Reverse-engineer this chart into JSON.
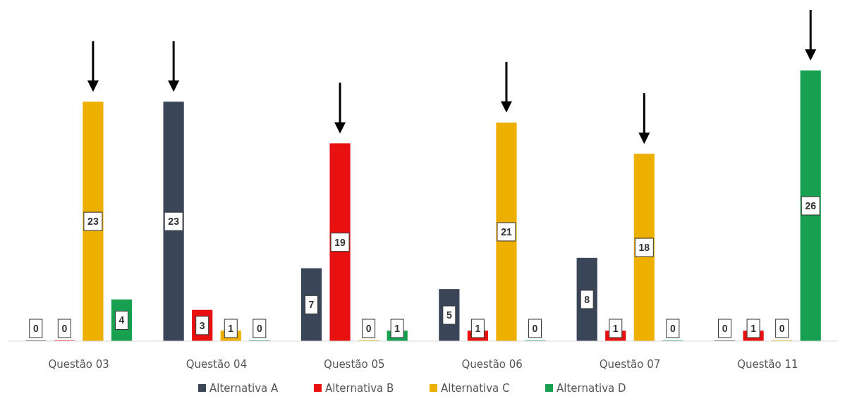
{
  "chart_data": {
    "type": "bar",
    "categories": [
      "Questão 03",
      "Questão 04",
      "Questão 05",
      "Questão 06",
      "Questão 07",
      "Questão 11"
    ],
    "series": [
      {
        "name": "Alternativa A",
        "color": "#3a4558",
        "values": [
          0,
          23,
          7,
          5,
          8,
          0
        ]
      },
      {
        "name": "Alternativa B",
        "color": "#e81010",
        "values": [
          0,
          3,
          19,
          1,
          1,
          1
        ]
      },
      {
        "name": "Alternativa C",
        "color": "#eeb000",
        "values": [
          23,
          1,
          0,
          21,
          18,
          0
        ]
      },
      {
        "name": "Alternativa D",
        "color": "#16a050",
        "values": [
          4,
          0,
          1,
          0,
          0,
          26
        ]
      }
    ],
    "data_labels": true,
    "legend": "bottom"
  }
}
